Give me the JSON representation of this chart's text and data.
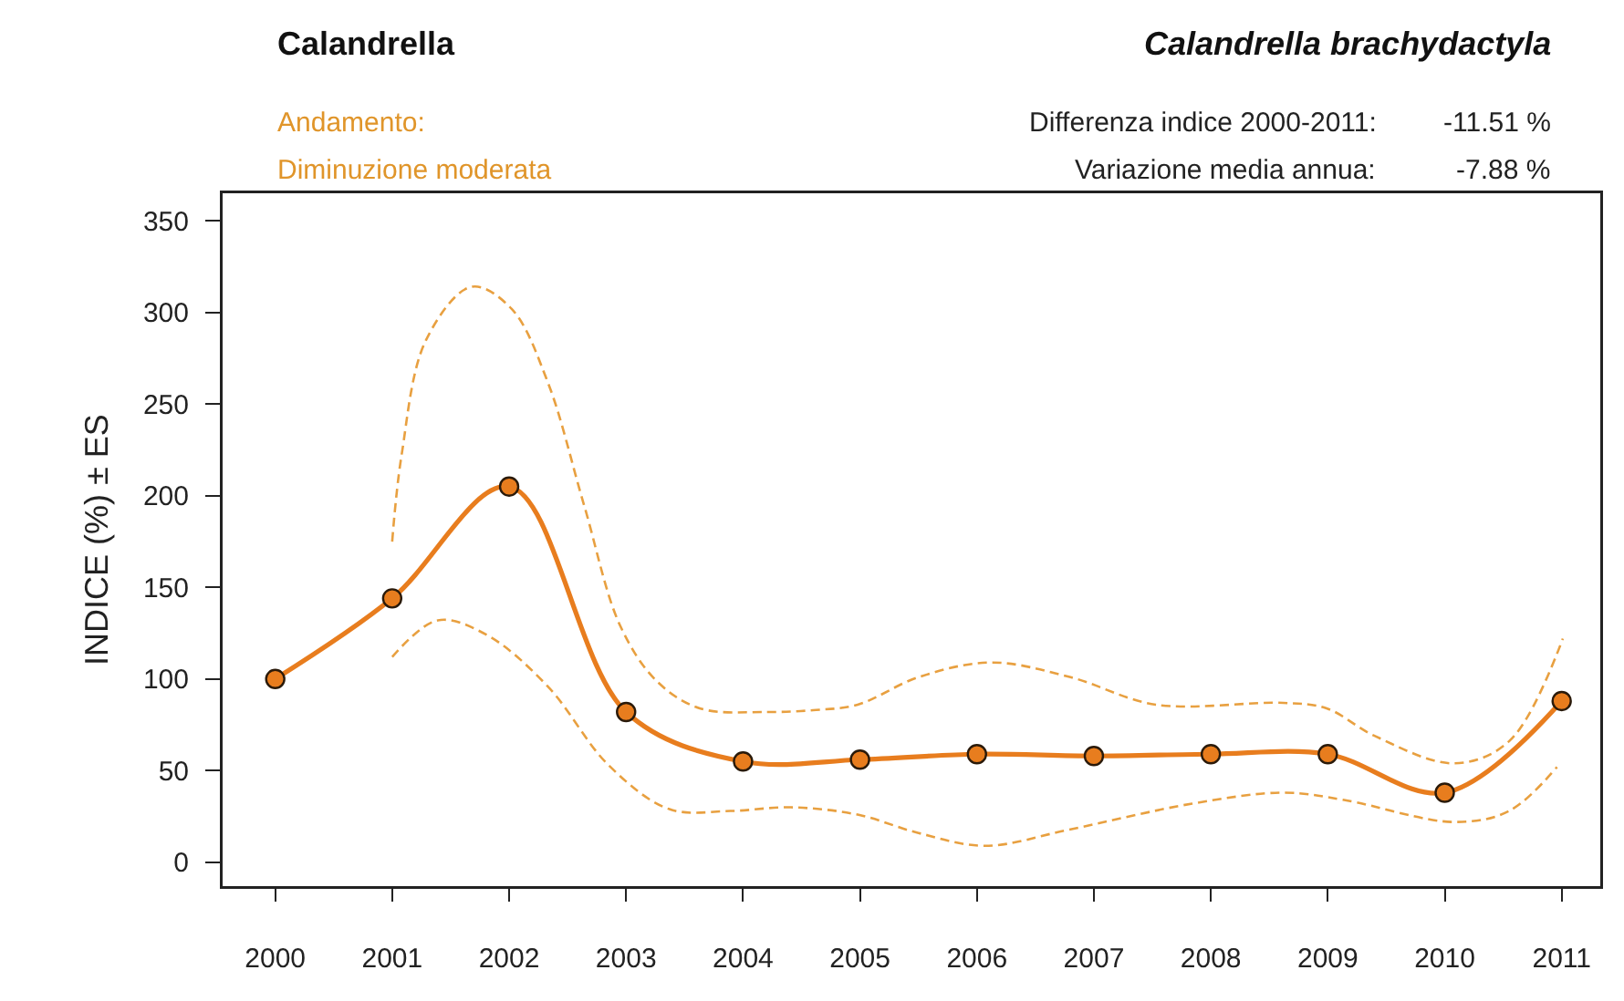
{
  "chart_data": {
    "type": "line",
    "title": "Calandrella",
    "subtitle": "Calandrella brachydactyla",
    "ylabel": "INDICE (%) ± ES",
    "annotations": [
      "Andamento:",
      "Diminuzione moderata",
      "Differenza indice 2000-2011:",
      "-11.51 %",
      "Variazione media annua:",
      "-7.88 %"
    ],
    "x": [
      2000,
      2001,
      2002,
      2003,
      2004,
      2005,
      2006,
      2007,
      2008,
      2009,
      2010,
      2011
    ],
    "series": [
      {
        "color": "#e87d1e",
        "marker": "circle",
        "line_style": "solid",
        "values": [
          100,
          144,
          205,
          82,
          55,
          56,
          59,
          58,
          59,
          59,
          38,
          88
        ]
      },
      {
        "color": "#e8a040",
        "marker": "none",
        "line_style": "dashed",
        "x": [
          2001.0,
          2001.08,
          2001.29,
          2001.68,
          2002.02,
          2002.33,
          2002.64,
          2002.95,
          2003.26,
          2003.63,
          2004.2,
          2004.6,
          2004.98,
          2005.5,
          2006.12,
          2006.8,
          2007.53,
          2008.62,
          2008.99,
          2009.4,
          2010.08,
          2010.55,
          2011.01
        ],
        "values": [
          175,
          222,
          285,
          314,
          302,
          262,
          195,
          129,
          99,
          84,
          82,
          83,
          86,
          101,
          109,
          101,
          86,
          87,
          84,
          69,
          54,
          66,
          122
        ]
      },
      {
        "color": "#e8a040",
        "marker": "none",
        "line_style": "dashed",
        "x": [
          2001.0,
          2001.39,
          2001.81,
          2002.33,
          2002.85,
          2003.37,
          2003.89,
          2004.41,
          2004.98,
          2005.5,
          2006.07,
          2006.8,
          2007.84,
          2008.62,
          2009.14,
          2010.08,
          2010.55,
          2010.96
        ],
        "values": [
          112,
          132,
          124,
          96,
          53,
          29,
          28,
          30,
          26,
          16,
          9,
          18,
          32,
          38,
          34,
          22,
          28,
          52
        ]
      }
    ],
    "xlim": [
      1999.55,
      2011.33
    ],
    "xticks": [
      2000,
      2001,
      2002,
      2003,
      2004,
      2005,
      2006,
      2007,
      2008,
      2009,
      2010,
      2011
    ],
    "ylim": [
      -13,
      365
    ],
    "yticks": [
      0,
      50,
      100,
      150,
      200,
      250,
      300,
      350
    ],
    "grid": false
  }
}
